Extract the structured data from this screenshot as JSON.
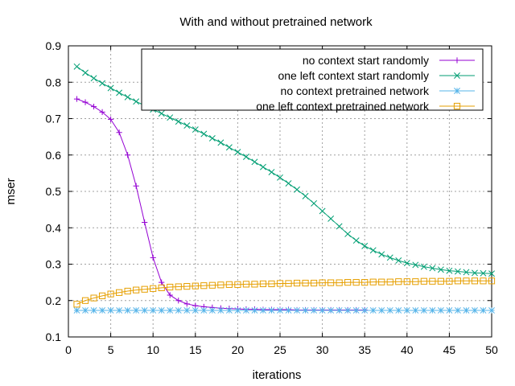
{
  "chart_data": {
    "type": "line",
    "title": "With and without pretrained network",
    "xlabel": "iterations",
    "ylabel": "mser",
    "xlim": [
      0,
      50
    ],
    "ylim": [
      0.1,
      0.9
    ],
    "xticks": [
      0,
      5,
      10,
      15,
      20,
      25,
      30,
      35,
      40,
      45,
      50
    ],
    "yticks": [
      0.1,
      0.2,
      0.3,
      0.4,
      0.5,
      0.6,
      0.7,
      0.8,
      0.9
    ],
    "xtick_labels": [
      "0",
      "5",
      "10",
      "15",
      "20",
      "25",
      "30",
      "35",
      "40",
      "45",
      "50"
    ],
    "ytick_labels": [
      "0.1",
      "0.2",
      "0.3",
      "0.4",
      "0.5",
      "0.6",
      "0.7",
      "0.8",
      "0.9"
    ],
    "grid": true,
    "legend_position": "top-right",
    "series": [
      {
        "name": "no context   start randomly",
        "color": "#9400d3",
        "marker": "plus",
        "x": [
          1,
          2,
          3,
          4,
          5,
          6,
          7,
          8,
          9,
          10,
          11,
          12,
          13,
          14,
          15,
          16,
          17,
          18,
          19,
          20,
          21,
          22,
          23,
          24,
          25,
          26,
          27,
          28,
          29,
          30,
          31,
          32,
          33,
          34,
          35
        ],
        "y": [
          0.754,
          0.745,
          0.733,
          0.718,
          0.698,
          0.662,
          0.6,
          0.515,
          0.415,
          0.318,
          0.25,
          0.215,
          0.2,
          0.191,
          0.186,
          0.183,
          0.181,
          0.179,
          0.178,
          0.177,
          0.176,
          0.176,
          0.175,
          0.175,
          0.175,
          0.175,
          0.174,
          0.174,
          0.174,
          0.174,
          0.174,
          0.174,
          0.174,
          0.174,
          0.174
        ]
      },
      {
        "name": "one left context   start randomly",
        "color": "#009e73",
        "marker": "cross",
        "x": [
          1,
          2,
          3,
          4,
          5,
          6,
          7,
          8,
          9,
          10,
          11,
          12,
          13,
          14,
          15,
          16,
          17,
          18,
          19,
          20,
          21,
          22,
          23,
          24,
          25,
          26,
          27,
          28,
          29,
          30,
          31,
          32,
          33,
          34,
          35,
          36,
          37,
          38,
          39,
          40,
          41,
          42,
          43,
          44,
          45,
          46,
          47,
          48,
          49,
          50
        ],
        "y": [
          0.843,
          0.826,
          0.811,
          0.797,
          0.784,
          0.771,
          0.759,
          0.747,
          0.736,
          0.725,
          0.714,
          0.703,
          0.692,
          0.681,
          0.67,
          0.658,
          0.646,
          0.634,
          0.621,
          0.608,
          0.595,
          0.581,
          0.567,
          0.553,
          0.538,
          0.522,
          0.505,
          0.487,
          0.467,
          0.446,
          0.425,
          0.404,
          0.383,
          0.365,
          0.35,
          0.338,
          0.327,
          0.318,
          0.31,
          0.303,
          0.298,
          0.293,
          0.289,
          0.285,
          0.282,
          0.28,
          0.278,
          0.276,
          0.275,
          0.274
        ]
      },
      {
        "name": "no context   pretrained network",
        "color": "#56b4e9",
        "marker": "star",
        "x": [
          1,
          2,
          3,
          4,
          5,
          6,
          7,
          8,
          9,
          10,
          11,
          12,
          13,
          14,
          15,
          16,
          17,
          18,
          19,
          20,
          21,
          22,
          23,
          24,
          25,
          26,
          27,
          28,
          29,
          30,
          31,
          32,
          33,
          34,
          35,
          36,
          37,
          38,
          39,
          40,
          41,
          42,
          43,
          44,
          45,
          46,
          47,
          48,
          49,
          50
        ],
        "y": [
          0.173,
          0.173,
          0.173,
          0.173,
          0.173,
          0.173,
          0.173,
          0.173,
          0.173,
          0.173,
          0.173,
          0.173,
          0.173,
          0.173,
          0.173,
          0.173,
          0.173,
          0.173,
          0.173,
          0.173,
          0.173,
          0.173,
          0.173,
          0.173,
          0.173,
          0.173,
          0.173,
          0.173,
          0.173,
          0.173,
          0.173,
          0.173,
          0.173,
          0.173,
          0.173,
          0.173,
          0.173,
          0.173,
          0.173,
          0.173,
          0.173,
          0.173,
          0.173,
          0.173,
          0.173,
          0.173,
          0.173,
          0.173,
          0.173,
          0.173
        ]
      },
      {
        "name": "one left context   pretrained network",
        "color": "#e69f00",
        "marker": "square",
        "x": [
          1,
          2,
          3,
          4,
          5,
          6,
          7,
          8,
          9,
          10,
          11,
          12,
          13,
          14,
          15,
          16,
          17,
          18,
          19,
          20,
          21,
          22,
          23,
          24,
          25,
          26,
          27,
          28,
          29,
          30,
          31,
          32,
          33,
          34,
          35,
          36,
          37,
          38,
          39,
          40,
          41,
          42,
          43,
          44,
          45,
          46,
          47,
          48,
          49,
          50
        ],
        "y": [
          0.19,
          0.2,
          0.207,
          0.213,
          0.218,
          0.222,
          0.226,
          0.229,
          0.231,
          0.233,
          0.235,
          0.237,
          0.238,
          0.239,
          0.24,
          0.241,
          0.242,
          0.243,
          0.244,
          0.244,
          0.245,
          0.245,
          0.246,
          0.246,
          0.247,
          0.247,
          0.248,
          0.248,
          0.248,
          0.249,
          0.249,
          0.249,
          0.25,
          0.25,
          0.25,
          0.251,
          0.251,
          0.251,
          0.252,
          0.252,
          0.252,
          0.253,
          0.253,
          0.253,
          0.253,
          0.254,
          0.254,
          0.254,
          0.254,
          0.254
        ]
      }
    ]
  }
}
